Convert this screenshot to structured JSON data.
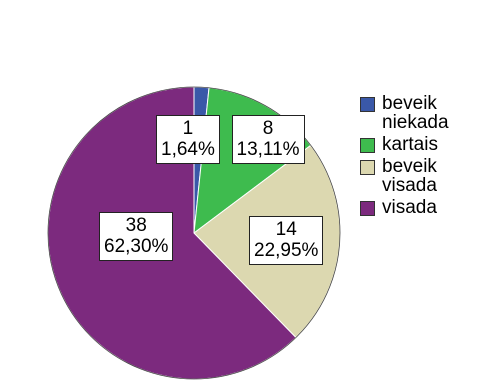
{
  "chart_data": {
    "type": "pie",
    "title": "",
    "slices": [
      {
        "label": "beveik niekada",
        "count": 1,
        "percent": "1,64%",
        "value": 1.64,
        "color": "#3a58a8"
      },
      {
        "label": "kartais",
        "count": 8,
        "percent": "13,11%",
        "value": 13.11,
        "color": "#3ebb4e"
      },
      {
        "label": "beveik visada",
        "count": 14,
        "percent": "22,95%",
        "value": 22.95,
        "color": "#dcd8b0"
      },
      {
        "label": "visada",
        "count": 38,
        "percent": "62,30%",
        "value": 62.3,
        "color": "#7c2a7e"
      }
    ],
    "slice_direction": "clockwise from top",
    "legend_position": "right"
  }
}
